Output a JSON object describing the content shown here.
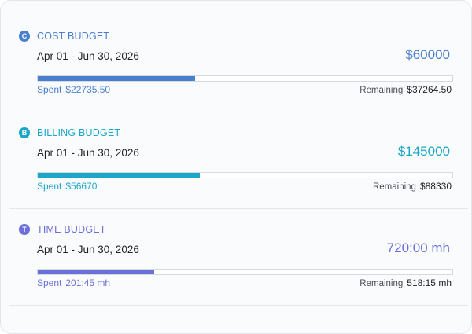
{
  "budgets": [
    {
      "badge": "C",
      "title": "COST BUDGET",
      "dates": "Apr 01 - Jun 30, 2026",
      "total": "$60000",
      "spent_label": "Spent",
      "spent": "$22735.50",
      "remaining_label": "Remaining",
      "remaining": "$37264.50",
      "progress_percent": 37.9,
      "color": "#4a7fcf"
    },
    {
      "badge": "B",
      "title": "BILLING BUDGET",
      "dates": "Apr 01 - Jun 30, 2026",
      "total": "$145000",
      "spent_label": "Spent",
      "spent": "$56670",
      "remaining_label": "Remaining",
      "remaining": "$88330",
      "progress_percent": 39.1,
      "color": "#1ba7c9"
    },
    {
      "badge": "T",
      "title": "TIME BUDGET",
      "dates": "Apr 01 - Jun 30, 2026",
      "total": "720:00 mh",
      "spent_label": "Spent",
      "spent": "201:45 mh",
      "remaining_label": "Remaining",
      "remaining": "518:15 mh",
      "progress_percent": 28.0,
      "color": "#6b6fd8"
    }
  ]
}
